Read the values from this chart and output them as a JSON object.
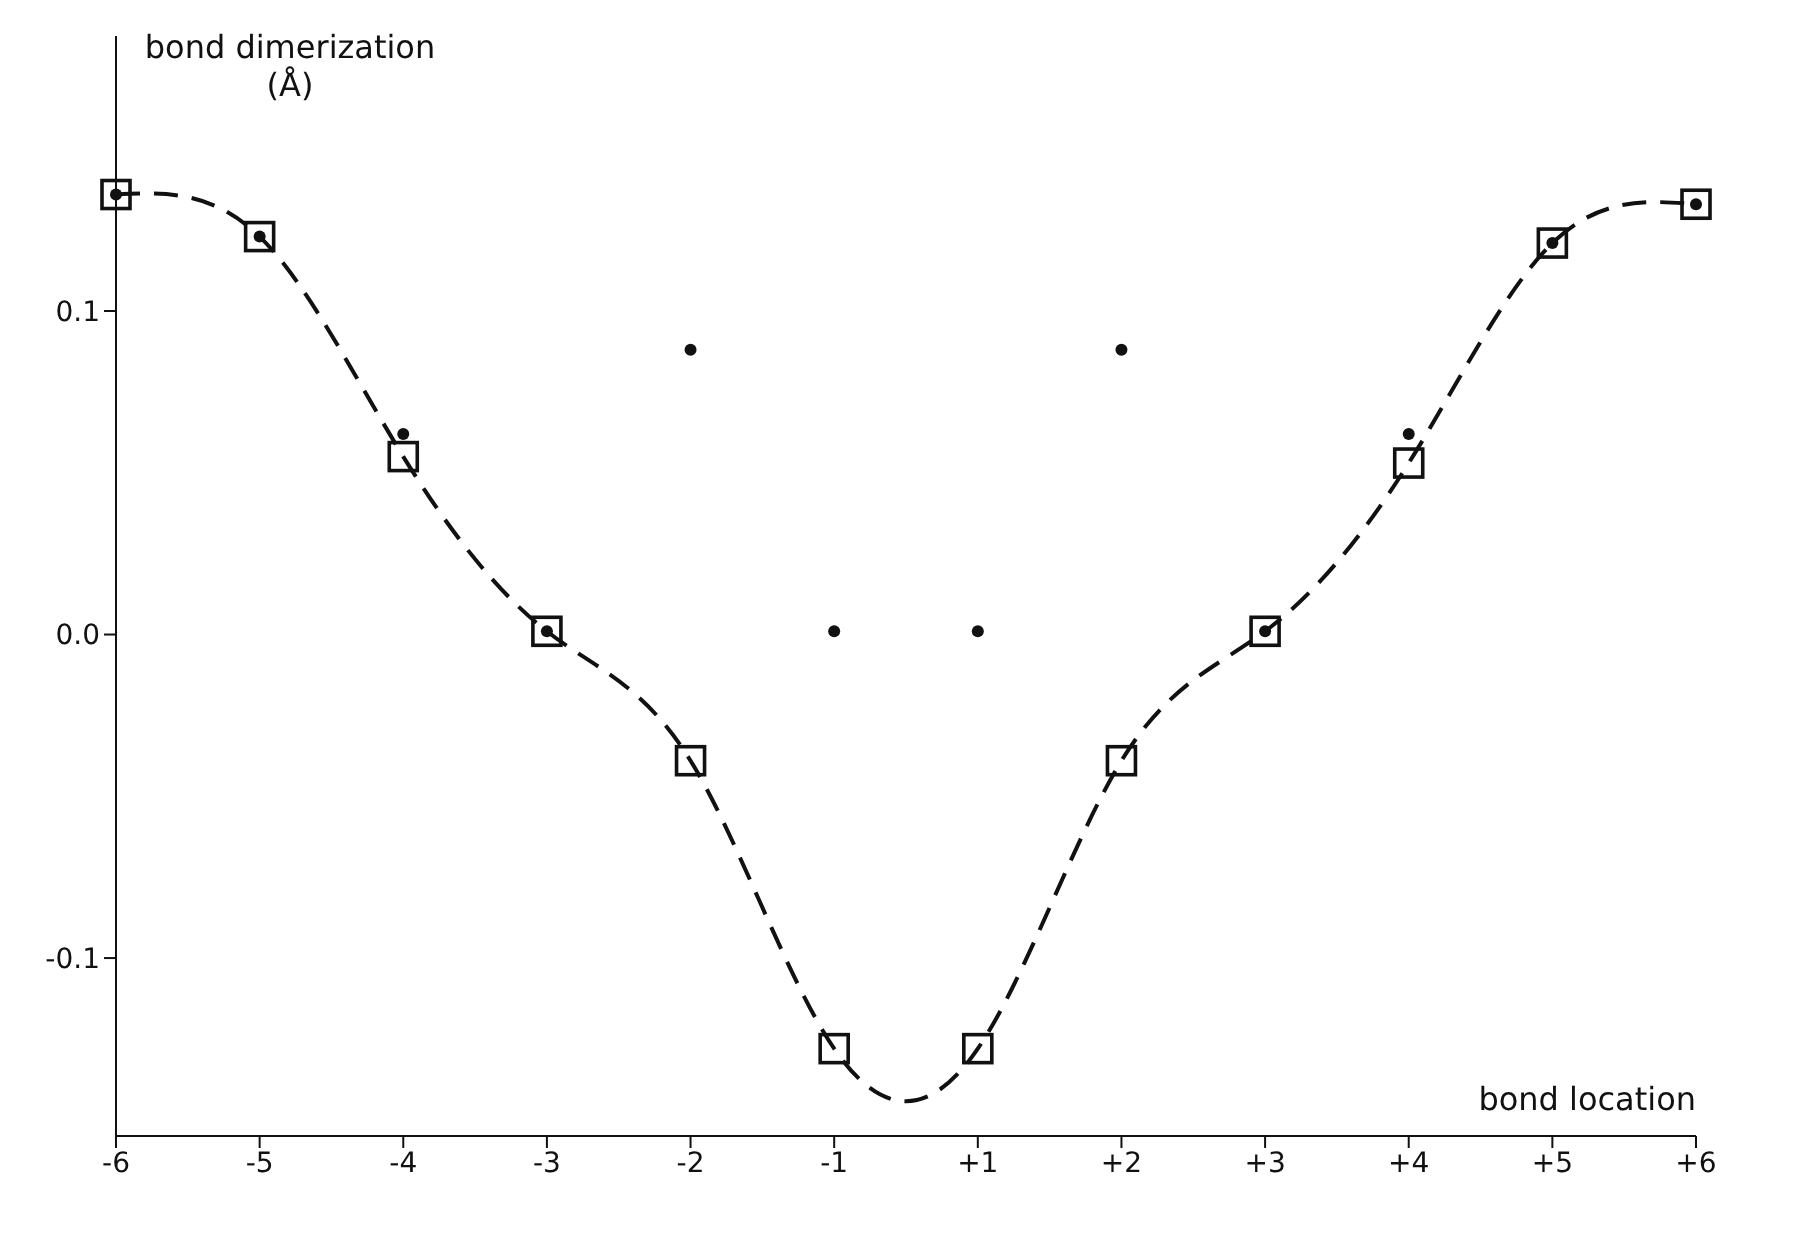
{
  "chart_data": {
    "type": "line",
    "xlabel": "bond location",
    "ylabel": "bond dimerization (Å)",
    "categories": [
      "-6",
      "-5",
      "-4",
      "-3",
      "-2",
      "-1",
      "+1",
      "+2",
      "+3",
      "+4",
      "+5",
      "+6"
    ],
    "series": [
      {
        "color": "#111111",
        "marker": "square",
        "line_style": "dashed",
        "values": [
          0.136,
          0.123,
          0.055,
          0.001,
          -0.039,
          -0.128,
          -0.128,
          -0.039,
          0.001,
          0.053,
          0.121,
          0.133
        ]
      },
      {
        "type": "scatter",
        "color": "#111111",
        "marker": "circle",
        "values": [
          0.136,
          0.123,
          0.062,
          0.001,
          0.088,
          0.001,
          0.001,
          0.088,
          0.001,
          0.062,
          0.121,
          0.133
        ]
      }
    ],
    "yticks": [
      {
        "value": -0.1,
        "label": "-0.1"
      },
      {
        "value": 0,
        "label": "0.0"
      },
      {
        "value": 0.1,
        "label": "0.1"
      }
    ],
    "ylim": [
      -0.155,
      0.185
    ]
  }
}
